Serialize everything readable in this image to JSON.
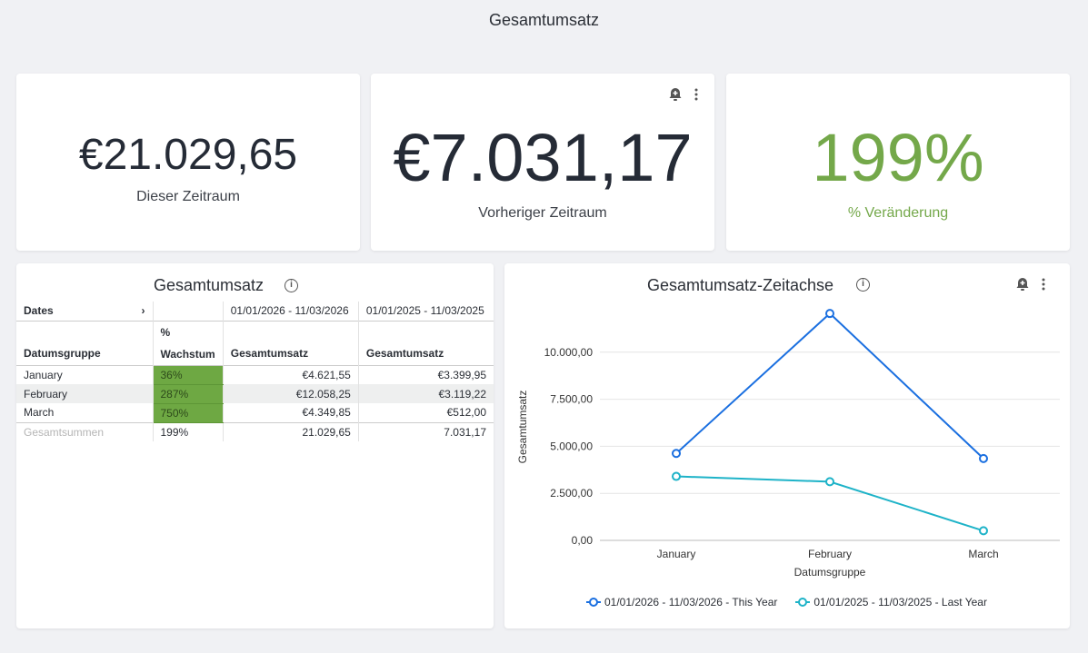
{
  "page_title": "Gesamtumsatz",
  "kpis": [
    {
      "value": "€21.029,65",
      "label": "Dieser Zeitraum"
    },
    {
      "value": "€7.031,17",
      "label": "Vorheriger Zeitraum"
    },
    {
      "value": "199%",
      "label": "% Veränderung",
      "color": "#74a84a"
    }
  ],
  "table_card": {
    "title": "Gesamtumsatz",
    "pivot_label": "Dates",
    "period_headers": [
      "01/01/2026 - 11/03/2026",
      "01/01/2025 - 11/03/2025"
    ],
    "col_headers": {
      "group": "Datumsgruppe",
      "growth_pct": "%",
      "growth": "Wachstum",
      "total1": "Gesamtumsatz",
      "total2": "Gesamtumsatz"
    },
    "rows": [
      {
        "group": "January",
        "growth": "36%",
        "this": "€4.621,55",
        "last": "€3.399,95"
      },
      {
        "group": "February",
        "growth": "287%",
        "this": "€12.058,25",
        "last": "€3.119,22"
      },
      {
        "group": "March",
        "growth": "750%",
        "this": "€4.349,85",
        "last": "€512,00"
      }
    ],
    "totals": {
      "label": "Gesamtsummen",
      "growth": "199%",
      "this": "21.029,65",
      "last": "7.031,17"
    }
  },
  "chart_card": {
    "title": "Gesamtumsatz-Zeitachse"
  },
  "chart_data": {
    "type": "line",
    "title": "Gesamtumsatz-Zeitachse",
    "xlabel": "Datumsgruppe",
    "ylabel": "Gesamtumsatz",
    "categories": [
      "January",
      "February",
      "March"
    ],
    "ylim": [
      0,
      12500
    ],
    "yticks": [
      {
        "v": 0,
        "label": "0,00"
      },
      {
        "v": 2500,
        "label": "2.500,00"
      },
      {
        "v": 5000,
        "label": "5.000,00"
      },
      {
        "v": 7500,
        "label": "7.500,00"
      },
      {
        "v": 10000,
        "label": "10.000,00"
      }
    ],
    "series": [
      {
        "name": "01/01/2026 - 11/03/2026 - This Year",
        "color": "#1a6fe0",
        "values": [
          4621.55,
          12058.25,
          4349.85
        ]
      },
      {
        "name": "01/01/2025 - 11/03/2025 - Last Year",
        "color": "#1eb3c8",
        "values": [
          3399.95,
          3119.22,
          512.0
        ]
      }
    ],
    "legend": "bottom"
  }
}
